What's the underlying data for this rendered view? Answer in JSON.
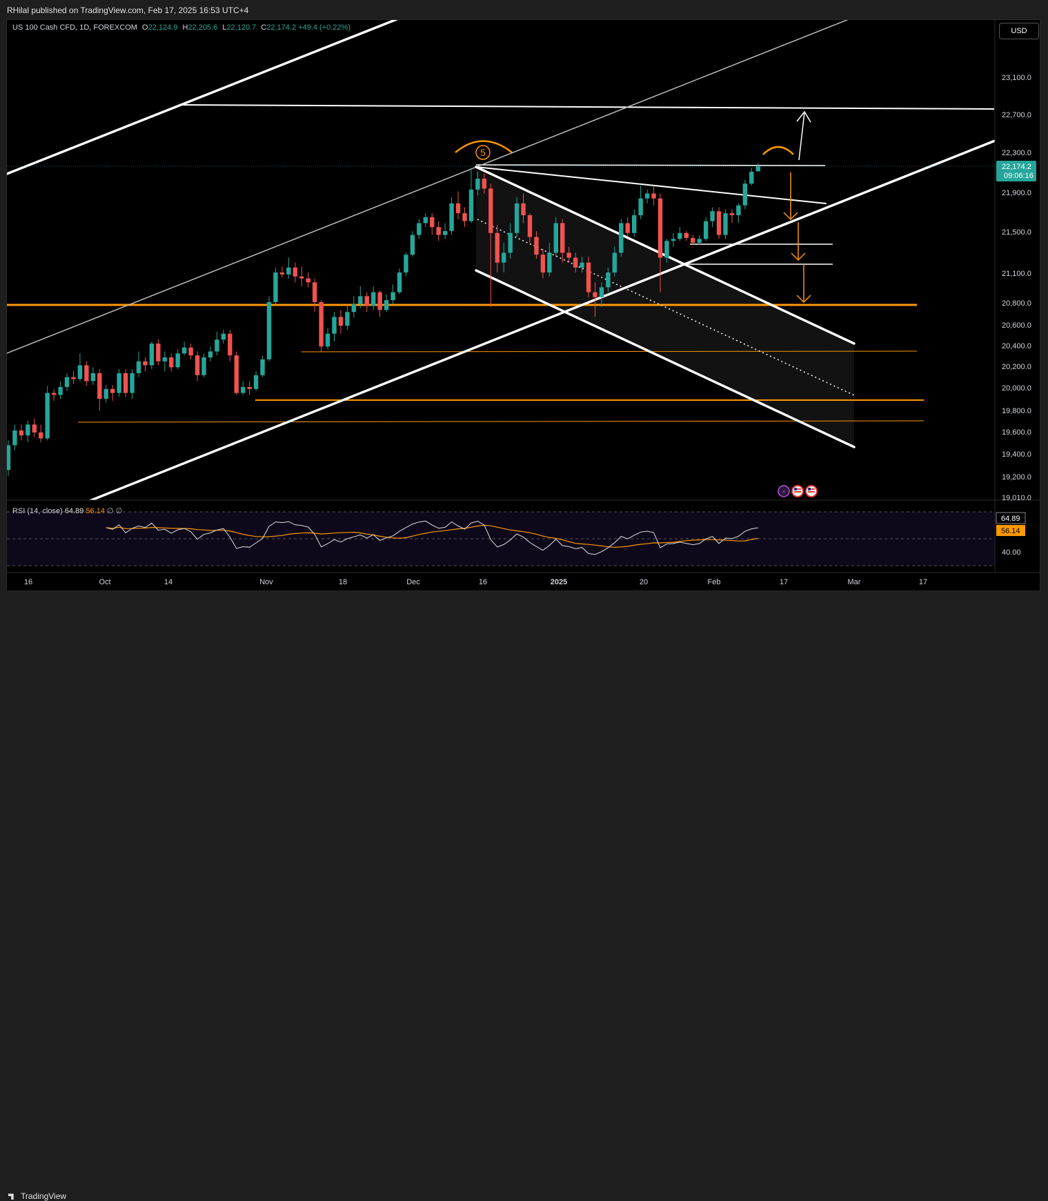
{
  "header": {
    "publisher_text": "RHilal published on TradingView.com, Feb 17, 2025 16:53 UTC+4"
  },
  "legend": {
    "symbol": "US 100 Cash CFD, 1D, FOREXCOM",
    "o_label": "O",
    "o_value": "22,124.9",
    "h_label": "H",
    "h_value": "22,205.6",
    "l_label": "L",
    "l_value": "22,120.7",
    "c_label": "C",
    "c_value": "22,174.2",
    "change": "+49.4 (+0.22%)"
  },
  "currency_button": "USD",
  "price_axis": {
    "ticks": [
      "23,100.0",
      "22,700.0",
      "22,300.0",
      "21,900.0",
      "21,500.0",
      "21,100.0",
      "20,800.0",
      "20,600.0",
      "20,400.0",
      "20,200.0",
      "20,000.0",
      "19,800.0",
      "19,600.0",
      "19,400.0",
      "19,200.0",
      "19,010.0"
    ],
    "last_price": "22,174.2",
    "countdown": "09:06:16"
  },
  "time_axis": {
    "ticks": [
      "16",
      "Oct",
      "14",
      "Nov",
      "18",
      "Dec",
      "16",
      "2025",
      "20",
      "Feb",
      "17",
      "Mar",
      "17"
    ]
  },
  "rsi": {
    "title": "RSI (14, close)",
    "value": "64.89",
    "ma_value": "56.14",
    "extra": "∅ ∅",
    "axis_label": "40.00"
  },
  "annotation": {
    "wave_label": "5"
  },
  "footer": {
    "brand": "TradingView"
  },
  "colors": {
    "up": "#26a69a",
    "down": "#ef5350",
    "orange": "#ff9800",
    "white": "#ffffff",
    "rsi_line": "#e0e0e0",
    "rsi_ma": "#ff9800",
    "price_label_bg": "#26a69a",
    "ma_label_bg": "#ff9800"
  },
  "chart_data": {
    "type": "candlestick",
    "title": "US 100 Cash CFD, 1D, FOREXCOM",
    "ylim": [
      19010,
      23400
    ],
    "x_tick_labels": [
      "16",
      "Oct",
      "14",
      "Nov",
      "18",
      "Dec",
      "16",
      "2025",
      "20",
      "Feb",
      "17",
      "Mar",
      "17"
    ],
    "horizontal_levels": [
      22780,
      22180,
      21380,
      21180,
      20780,
      20350,
      19900,
      19700
    ],
    "candles": [
      [
        19100,
        19350,
        19040,
        19400
      ],
      [
        19350,
        19500,
        19300,
        19560
      ],
      [
        19500,
        19450,
        19400,
        19560
      ],
      [
        19450,
        19560,
        19380,
        19600
      ],
      [
        19560,
        19480,
        19430,
        19620
      ],
      [
        19480,
        19420,
        19380,
        19560
      ],
      [
        19420,
        19880,
        19400,
        19950
      ],
      [
        19880,
        19860,
        19800,
        19920
      ],
      [
        19860,
        19940,
        19820,
        20000
      ],
      [
        19940,
        20040,
        19900,
        20080
      ],
      [
        20040,
        20020,
        19970,
        20100
      ],
      [
        20020,
        20160,
        20000,
        20280
      ],
      [
        20160,
        20000,
        19950,
        20200
      ],
      [
        20000,
        20080,
        19960,
        20140
      ],
      [
        20080,
        19820,
        19700,
        20120
      ],
      [
        19820,
        19920,
        19780,
        19960
      ],
      [
        19920,
        19880,
        19800,
        19960
      ],
      [
        19880,
        20080,
        19840,
        20120
      ],
      [
        20080,
        19880,
        19840,
        20120
      ],
      [
        19880,
        20080,
        19820,
        20120
      ],
      [
        20080,
        20200,
        20040,
        20300
      ],
      [
        20200,
        20160,
        20100,
        20240
      ],
      [
        20160,
        20380,
        20120,
        20400
      ],
      [
        20380,
        20200,
        20160,
        20420
      ],
      [
        20200,
        20240,
        20100,
        20300
      ],
      [
        20240,
        20140,
        20100,
        20280
      ],
      [
        20140,
        20280,
        20120,
        20320
      ],
      [
        20280,
        20340,
        20260,
        20400
      ],
      [
        20340,
        20260,
        20220,
        20380
      ],
      [
        20260,
        20060,
        20000,
        20300
      ],
      [
        20060,
        20240,
        20040,
        20280
      ],
      [
        20240,
        20300,
        20200,
        20350
      ],
      [
        20300,
        20420,
        20260,
        20500
      ],
      [
        20420,
        20480,
        20380,
        20520
      ],
      [
        20480,
        20260,
        20200,
        20520
      ],
      [
        20260,
        19880,
        19860,
        20300
      ],
      [
        19880,
        19940,
        19860,
        20000
      ],
      [
        19940,
        19920,
        19860,
        20000
      ],
      [
        19920,
        20060,
        19900,
        20100
      ],
      [
        20060,
        20220,
        20040,
        20260
      ],
      [
        20220,
        20800,
        20200,
        20860
      ],
      [
        20800,
        21100,
        20760,
        21150
      ],
      [
        21100,
        21080,
        21050,
        21160
      ],
      [
        21080,
        21150,
        21040,
        21250
      ],
      [
        21150,
        21060,
        21000,
        21200
      ],
      [
        21060,
        21040,
        20960,
        21160
      ],
      [
        21040,
        21000,
        20950,
        21100
      ],
      [
        21000,
        20800,
        20700,
        21040
      ],
      [
        20800,
        20350,
        20300,
        20820
      ],
      [
        20350,
        20480,
        20320,
        20540
      ],
      [
        20480,
        20650,
        20400,
        20700
      ],
      [
        20650,
        20560,
        20480,
        20720
      ],
      [
        20560,
        20700,
        20520,
        20760
      ],
      [
        20700,
        20780,
        20640,
        20860
      ],
      [
        20780,
        20860,
        20740,
        20960
      ],
      [
        20860,
        20760,
        20700,
        20900
      ],
      [
        20760,
        20900,
        20720,
        20960
      ],
      [
        20900,
        20720,
        20650,
        20920
      ],
      [
        20720,
        20820,
        20700,
        20880
      ],
      [
        20820,
        20900,
        20780,
        20980
      ],
      [
        20900,
        21100,
        20880,
        21140
      ],
      [
        21100,
        21280,
        21060,
        21300
      ],
      [
        21280,
        21480,
        21260,
        21520
      ],
      [
        21480,
        21600,
        21440,
        21640
      ],
      [
        21600,
        21660,
        21560,
        21700
      ],
      [
        21660,
        21560,
        21480,
        21700
      ],
      [
        21560,
        21480,
        21420,
        21620
      ],
      [
        21480,
        21520,
        21440,
        21600
      ],
      [
        21520,
        21800,
        21480,
        21860
      ],
      [
        21800,
        21700,
        21640,
        21920
      ],
      [
        21700,
        21620,
        21560,
        21760
      ],
      [
        21620,
        21940,
        21600,
        22160
      ],
      [
        21940,
        22050,
        21880,
        22120
      ],
      [
        22050,
        21950,
        21900,
        22100
      ],
      [
        21950,
        21500,
        20750,
        22000
      ],
      [
        21500,
        21200,
        21100,
        21580
      ],
      [
        21200,
        21300,
        21100,
        21400
      ],
      [
        21300,
        21500,
        21240,
        21600
      ],
      [
        21500,
        21800,
        21460,
        21860
      ],
      [
        21800,
        21680,
        21600,
        21900
      ],
      [
        21680,
        21460,
        21400,
        21700
      ],
      [
        21460,
        21280,
        21240,
        21520
      ],
      [
        21280,
        21100,
        21040,
        21340
      ],
      [
        21100,
        21300,
        21060,
        21400
      ],
      [
        21300,
        21600,
        21260,
        21660
      ],
      [
        21600,
        21300,
        21200,
        21640
      ],
      [
        21300,
        21250,
        21200,
        21360
      ],
      [
        21250,
        21150,
        21100,
        21300
      ],
      [
        21150,
        21200,
        21100,
        21260
      ],
      [
        21200,
        20900,
        20850,
        21260
      ],
      [
        20900,
        20850,
        20650,
        21000
      ],
      [
        20850,
        20950,
        20750,
        21000
      ],
      [
        20950,
        21100,
        20900,
        21150
      ],
      [
        21100,
        21300,
        21060,
        21360
      ],
      [
        21300,
        21600,
        21260,
        21640
      ],
      [
        21600,
        21500,
        21460,
        21660
      ],
      [
        21500,
        21680,
        21460,
        21740
      ],
      [
        21680,
        21850,
        21640,
        21980
      ],
      [
        21850,
        21900,
        21800,
        21940
      ],
      [
        21900,
        21850,
        21780,
        21980
      ],
      [
        21850,
        21250,
        20900,
        21900
      ],
      [
        21250,
        21420,
        21200,
        21440
      ],
      [
        21420,
        21440,
        21360,
        21500
      ],
      [
        21440,
        21500,
        21420,
        21560
      ],
      [
        21500,
        21450,
        21420,
        21520
      ],
      [
        21450,
        21400,
        21380,
        21480
      ],
      [
        21400,
        21440,
        21380,
        21480
      ],
      [
        21440,
        21620,
        21420,
        21660
      ],
      [
        21620,
        21720,
        21560,
        21760
      ],
      [
        21720,
        21480,
        21440,
        21760
      ],
      [
        21480,
        21700,
        21440,
        21740
      ],
      [
        21700,
        21680,
        21600,
        21740
      ],
      [
        21680,
        21780,
        21600,
        21800
      ],
      [
        21780,
        22000,
        21740,
        22040
      ],
      [
        22000,
        22120,
        21980,
        22160
      ],
      [
        22124.9,
        22174.2,
        22120.7,
        22205.6
      ]
    ],
    "rsi": {
      "period": 14,
      "last": 64.89,
      "ma_last": 56.14,
      "ylim": [
        30,
        80
      ]
    }
  }
}
